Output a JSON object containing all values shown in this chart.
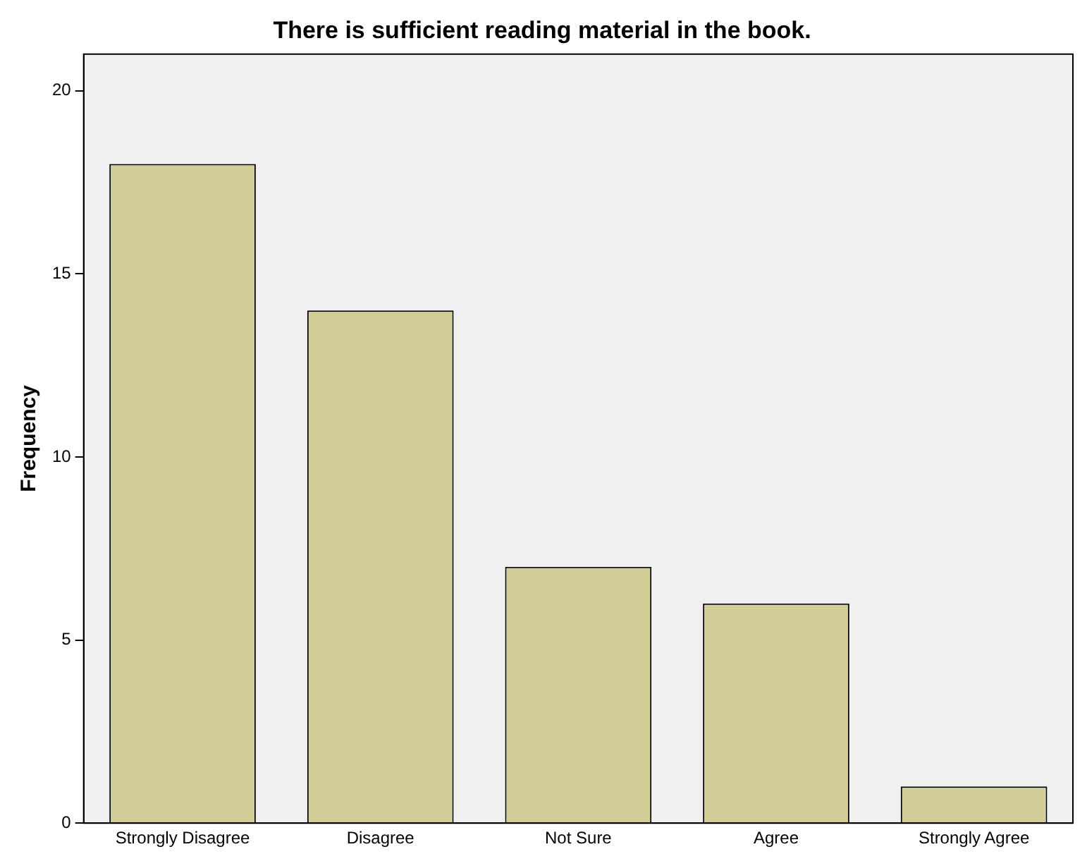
{
  "chart_data": {
    "type": "bar",
    "title": "There is sufficient reading material in the book.",
    "ylabel": "Frequency",
    "categories": [
      "Strongly Disagree",
      "Disagree",
      "Not Sure",
      "Agree",
      "Strongly Agree"
    ],
    "values": [
      18,
      14,
      7,
      6,
      1
    ],
    "color": "#d3ce97",
    "ylim": [
      0,
      21
    ],
    "yticks": [
      0,
      5,
      10,
      15,
      20
    ],
    "grid": false,
    "legend": false
  }
}
